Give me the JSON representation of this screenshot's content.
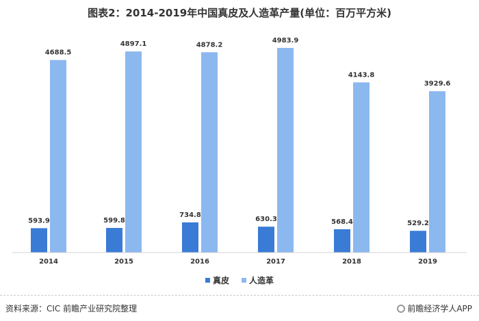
{
  "chart_data": {
    "type": "bar",
    "title": "图表2：2014-2019年中国真皮及人造革产量(单位：百万平方米)",
    "categories": [
      "2014",
      "2015",
      "2016",
      "2017",
      "2018",
      "2019"
    ],
    "series": [
      {
        "name": "真皮",
        "color": "#3a7bd5",
        "values": [
          593.9,
          599.8,
          734.8,
          630.3,
          568.4,
          529.2
        ]
      },
      {
        "name": "人造革",
        "color": "#8cb8f0",
        "values": [
          4688.5,
          4897.1,
          4878.2,
          4983.9,
          4143.8,
          3929.6
        ]
      }
    ],
    "ylim": [
      0,
      5400
    ],
    "grid": false,
    "legend_position": "bottom"
  },
  "footer": {
    "source": "资料来源：CIC 前瞻产业研究院整理",
    "brand": "前瞻经济学人APP"
  }
}
